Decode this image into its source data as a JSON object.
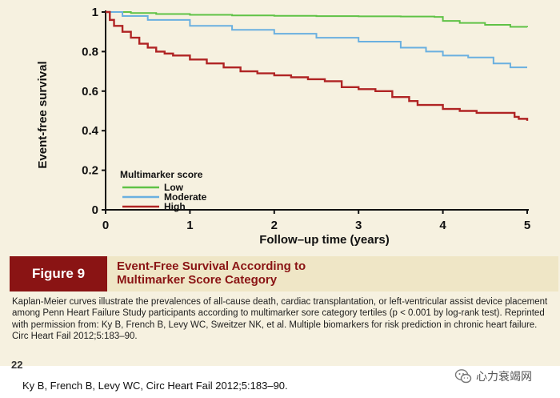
{
  "colors": {
    "low": "#5fc246",
    "moderate": "#6ab0e0",
    "high": "#b02424",
    "figure_red": "#8a1414",
    "card_bg": "#f6f1e0"
  },
  "chart_data": {
    "type": "line",
    "xlabel": "Follow–up time (years)",
    "ylabel": "Event-free survival",
    "xlim": [
      0,
      5
    ],
    "ylim": [
      0,
      1
    ],
    "x_ticks": [
      "0",
      "1",
      "2",
      "3",
      "4",
      "5"
    ],
    "y_ticks": [
      "0",
      "0.2",
      "0.4",
      "0.6",
      "0.8",
      "1"
    ],
    "grid": false,
    "legend_title": "Multimarker score",
    "legend_position": "lower-left",
    "series": [
      {
        "name": "Low",
        "color": "#5fc246",
        "x": [
          0,
          0.3,
          0.6,
          1.0,
          1.5,
          2.0,
          2.5,
          3.0,
          3.5,
          3.9,
          4.0,
          4.2,
          4.5,
          4.8,
          5.0
        ],
        "y": [
          1.0,
          0.995,
          0.99,
          0.986,
          0.983,
          0.981,
          0.979,
          0.978,
          0.977,
          0.975,
          0.955,
          0.945,
          0.935,
          0.925,
          0.923
        ]
      },
      {
        "name": "Moderate",
        "color": "#6ab0e0",
        "x": [
          0,
          0.2,
          0.5,
          1.0,
          1.5,
          2.0,
          2.5,
          3.0,
          3.5,
          3.8,
          4.0,
          4.3,
          4.6,
          4.8,
          5.0
        ],
        "y": [
          1.0,
          0.98,
          0.96,
          0.93,
          0.91,
          0.89,
          0.87,
          0.85,
          0.82,
          0.8,
          0.78,
          0.77,
          0.74,
          0.72,
          0.72
        ]
      },
      {
        "name": "High",
        "color": "#b02424",
        "x": [
          0,
          0.05,
          0.1,
          0.2,
          0.3,
          0.4,
          0.5,
          0.6,
          0.7,
          0.8,
          1.0,
          1.2,
          1.4,
          1.6,
          1.8,
          2.0,
          2.2,
          2.4,
          2.6,
          2.8,
          3.0,
          3.2,
          3.4,
          3.6,
          3.7,
          4.0,
          4.2,
          4.4,
          4.6,
          4.8,
          4.85,
          4.9,
          5.0
        ],
        "y": [
          1.0,
          0.96,
          0.93,
          0.9,
          0.87,
          0.84,
          0.82,
          0.8,
          0.79,
          0.78,
          0.76,
          0.74,
          0.72,
          0.7,
          0.69,
          0.68,
          0.67,
          0.66,
          0.65,
          0.62,
          0.61,
          0.6,
          0.57,
          0.55,
          0.53,
          0.51,
          0.5,
          0.49,
          0.49,
          0.49,
          0.47,
          0.46,
          0.45
        ]
      }
    ]
  },
  "figure": {
    "badge": "Figure 9",
    "title_line1": "Event-Free Survival According to",
    "title_line2": "Multimarker Score Category",
    "caption": "Kaplan-Meier curves illustrate the prevalences of all-cause death, cardiac transplantation, or left-ventricular assist device placement among Penn Heart Failure Study participants according to multimarker sore category tertiles (p < 0.001 by log-rank test). Reprinted with permission from: Ky B, French B, Levy WC, Sweitzer NK, et al. Multiple biomarkers for risk prediction in chronic heart failure. Circ Heart Fail 2012;5:183–90."
  },
  "page_fragment": "22",
  "citation": "Ky B, French B, Levy WC, Circ Heart Fail 2012;5:183–90.",
  "watermark": {
    "text": "心力衰竭网",
    "icon": "wechat-icon"
  }
}
